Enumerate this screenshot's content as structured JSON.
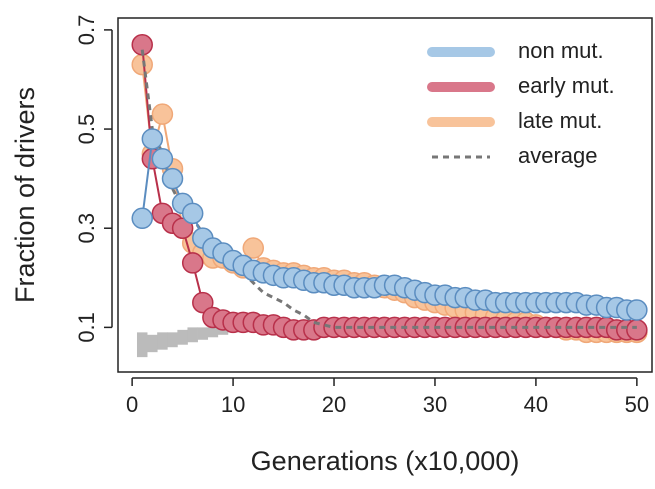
{
  "chart_data": {
    "type": "line",
    "xlabel": "Generations (x10,000)",
    "ylabel": "Fraction of drivers",
    "x": [
      1,
      2,
      3,
      4,
      5,
      6,
      7,
      8,
      9,
      10,
      11,
      12,
      13,
      14,
      15,
      16,
      17,
      18,
      19,
      20,
      21,
      22,
      23,
      24,
      25,
      26,
      27,
      28,
      29,
      30,
      31,
      32,
      33,
      34,
      35,
      36,
      37,
      38,
      39,
      40,
      41,
      42,
      43,
      44,
      45,
      46,
      47,
      48,
      49,
      50
    ],
    "series": [
      {
        "name": "late mut.",
        "color": "#f8c39a",
        "edge": "#f0a878",
        "marker": true,
        "values": [
          0.63,
          0.45,
          0.53,
          0.42,
          0.3,
          0.27,
          0.25,
          0.24,
          0.24,
          0.23,
          0.22,
          0.26,
          0.22,
          0.215,
          0.21,
          0.21,
          0.205,
          0.2,
          0.2,
          0.195,
          0.195,
          0.19,
          0.19,
          0.185,
          0.18,
          0.175,
          0.17,
          0.16,
          0.155,
          0.15,
          0.145,
          0.14,
          0.135,
          0.13,
          0.125,
          0.12,
          0.115,
          0.11,
          0.11,
          0.105,
          0.1,
          0.1,
          0.095,
          0.095,
          0.09,
          0.09,
          0.09,
          0.09,
          0.09,
          0.09
        ]
      },
      {
        "name": "early mut.",
        "color": "#d9778a",
        "edge": "#b8304a",
        "marker": true,
        "values": [
          0.67,
          0.44,
          0.33,
          0.31,
          0.3,
          0.23,
          0.15,
          0.12,
          0.115,
          0.11,
          0.11,
          0.11,
          0.105,
          0.105,
          0.1,
          0.095,
          0.095,
          0.095,
          0.1,
          0.1,
          0.1,
          0.1,
          0.1,
          0.1,
          0.1,
          0.1,
          0.1,
          0.1,
          0.1,
          0.1,
          0.1,
          0.1,
          0.1,
          0.1,
          0.1,
          0.1,
          0.1,
          0.1,
          0.1,
          0.1,
          0.1,
          0.1,
          0.1,
          0.1,
          0.1,
          0.1,
          0.1,
          0.095,
          0.095,
          0.095
        ]
      },
      {
        "name": "non mut.",
        "color": "#a6c8e6",
        "edge": "#5b8dc0",
        "marker": true,
        "values": [
          0.32,
          0.48,
          0.44,
          0.4,
          0.35,
          0.33,
          0.28,
          0.26,
          0.25,
          0.235,
          0.225,
          0.215,
          0.21,
          0.205,
          0.2,
          0.2,
          0.195,
          0.19,
          0.19,
          0.185,
          0.185,
          0.18,
          0.18,
          0.18,
          0.185,
          0.185,
          0.18,
          0.175,
          0.17,
          0.165,
          0.165,
          0.16,
          0.16,
          0.155,
          0.155,
          0.15,
          0.15,
          0.15,
          0.15,
          0.15,
          0.15,
          0.15,
          0.15,
          0.15,
          0.145,
          0.145,
          0.14,
          0.14,
          0.135,
          0.135
        ]
      },
      {
        "name": "average",
        "color": "#777777",
        "dashed": true,
        "marker": false,
        "values": [
          0.66,
          0.5,
          0.45,
          0.38,
          0.34,
          0.32,
          0.29,
          0.27,
          0.25,
          0.23,
          0.21,
          0.19,
          0.17,
          0.16,
          0.15,
          0.135,
          0.125,
          0.11,
          0.105,
          0.1,
          0.1,
          0.1,
          0.1,
          0.1,
          0.1,
          0.1,
          0.1,
          0.1,
          0.1,
          0.1,
          0.1,
          0.1,
          0.1,
          0.1,
          0.1,
          0.1,
          0.1,
          0.1,
          0.1,
          0.1,
          0.1,
          0.1,
          0.1,
          0.1,
          0.1,
          0.1,
          0.1,
          0.1,
          0.1,
          0.1
        ]
      }
    ],
    "band": {
      "color": "#bbbbbb",
      "x": [
        1,
        2,
        3,
        4,
        5,
        6,
        7,
        8,
        9,
        10,
        11,
        12,
        13,
        14,
        15
      ],
      "lower": [
        0.04,
        0.05,
        0.055,
        0.06,
        0.065,
        0.07,
        0.075,
        0.08,
        0.085,
        0.09,
        0.09,
        0.095,
        0.095,
        0.1,
        0.1
      ],
      "upper": [
        0.09,
        0.085,
        0.09,
        0.09,
        0.095,
        0.1,
        0.1,
        0.1,
        0.105,
        0.105,
        0.105,
        0.105,
        0.105,
        0.105,
        0.105
      ]
    },
    "legend_order": [
      2,
      1,
      0,
      3
    ],
    "legend": "top-right",
    "xlim": [
      -1.4,
      51.5
    ],
    "ylim": [
      0.01,
      0.724
    ],
    "xticks": [
      0,
      10,
      20,
      30,
      40,
      50
    ],
    "yticks": [
      0.1,
      0.3,
      0.5,
      0.7
    ]
  }
}
